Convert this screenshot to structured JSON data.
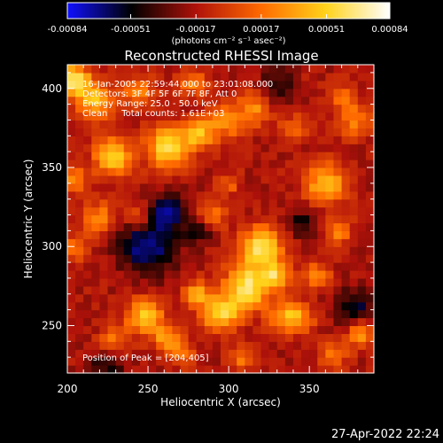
{
  "chart_data": {
    "type": "heatmap",
    "title": "Reconstructed RHESSI Image",
    "xlabel": "Heliocentric X (arcsec)",
    "ylabel": "Heliocentric Y (arcsec)",
    "xlim": [
      200,
      390
    ],
    "ylim": [
      220,
      415
    ],
    "xticks": [
      200,
      250,
      300,
      350
    ],
    "yticks": [
      250,
      300,
      350,
      400
    ],
    "colorbar": {
      "min": -0.00084,
      "max": 0.00084,
      "tick_values": [
        -0.00084,
        -0.00051,
        -0.00017,
        0.00017,
        0.00051,
        0.00084
      ],
      "tick_labels": [
        "-0.00084",
        "-0.00051",
        "-0.00017",
        "0.00017",
        "0.00051",
        "0.00084"
      ],
      "label": "(photons cm⁻² s⁻¹ asec⁻²)",
      "colors": [
        "#1010ff",
        "#000000",
        "#b0120a",
        "#ff6a00",
        "#ffd21a",
        "#ffffff"
      ]
    },
    "annotations": [
      "16-Jan-2005 22:59:44.000 to 23:01:08.000",
      "Detectors: 3F 4F 5F 6F 7F 8F, Att 0",
      "Energy Range: 25.0 - 50.0 keV",
      "Clean     Total counts: 1.61E+03"
    ],
    "peak_label": "Position of Peak = [204,405]",
    "peak": [
      204,
      405
    ],
    "background_value": -0.00017,
    "sources": [
      {
        "x": 204,
        "y": 405,
        "sigma": 7,
        "amp": 0.00084
      },
      {
        "x": 218,
        "y": 392,
        "sigma": 8,
        "amp": 0.0006
      },
      {
        "x": 245,
        "y": 398,
        "sigma": 7,
        "amp": 0.00045
      },
      {
        "x": 278,
        "y": 404,
        "sigma": 6,
        "amp": 0.0004
      },
      {
        "x": 312,
        "y": 394,
        "sigma": 6,
        "amp": 0.00025
      },
      {
        "x": 262,
        "y": 363,
        "sigma": 9,
        "amp": 0.00075
      },
      {
        "x": 282,
        "y": 372,
        "sigma": 7,
        "amp": 0.0006
      },
      {
        "x": 300,
        "y": 380,
        "sigma": 7,
        "amp": 0.0005
      },
      {
        "x": 318,
        "y": 385,
        "sigma": 6,
        "amp": 0.00035
      },
      {
        "x": 228,
        "y": 357,
        "sigma": 8,
        "amp": 0.0007
      },
      {
        "x": 205,
        "y": 342,
        "sigma": 6,
        "amp": 0.0004
      },
      {
        "x": 220,
        "y": 318,
        "sigma": 7,
        "amp": 0.00045
      },
      {
        "x": 205,
        "y": 300,
        "sigma": 6,
        "amp": 0.00035
      },
      {
        "x": 245,
        "y": 320,
        "sigma": 6,
        "amp": 0.0003
      },
      {
        "x": 320,
        "y": 300,
        "sigma": 9,
        "amp": 0.00078
      },
      {
        "x": 312,
        "y": 275,
        "sigma": 10,
        "amp": 0.0008
      },
      {
        "x": 295,
        "y": 258,
        "sigma": 8,
        "amp": 0.0007
      },
      {
        "x": 280,
        "y": 270,
        "sigma": 6,
        "amp": 0.0005
      },
      {
        "x": 330,
        "y": 282,
        "sigma": 6,
        "amp": 0.00055
      },
      {
        "x": 335,
        "y": 255,
        "sigma": 7,
        "amp": 0.0005
      },
      {
        "x": 248,
        "y": 256,
        "sigma": 8,
        "amp": 0.00065
      },
      {
        "x": 262,
        "y": 242,
        "sigma": 6,
        "amp": 0.0005
      },
      {
        "x": 228,
        "y": 240,
        "sigma": 6,
        "amp": 0.0004
      },
      {
        "x": 355,
        "y": 282,
        "sigma": 6,
        "amp": 0.0004
      },
      {
        "x": 360,
        "y": 340,
        "sigma": 9,
        "amp": 0.0006
      },
      {
        "x": 368,
        "y": 310,
        "sigma": 6,
        "amp": 0.0004
      },
      {
        "x": 345,
        "y": 255,
        "sigma": 6,
        "amp": 0.00035
      },
      {
        "x": 382,
        "y": 245,
        "sigma": 6,
        "amp": 0.0005
      },
      {
        "x": 365,
        "y": 232,
        "sigma": 6,
        "amp": 0.0004
      },
      {
        "x": 378,
        "y": 380,
        "sigma": 7,
        "amp": 0.0004
      },
      {
        "x": 340,
        "y": 375,
        "sigma": 6,
        "amp": 0.0003
      },
      {
        "x": 370,
        "y": 395,
        "sigma": 6,
        "amp": 0.00035
      },
      {
        "x": 290,
        "y": 320,
        "sigma": 6,
        "amp": 0.0004
      },
      {
        "x": 300,
        "y": 340,
        "sigma": 5,
        "amp": 0.0003
      },
      {
        "x": 272,
        "y": 232,
        "sigma": 5,
        "amp": 0.0004
      },
      {
        "x": 308,
        "y": 230,
        "sigma": 6,
        "amp": 0.00035
      },
      {
        "x": 250,
        "y": 300,
        "sigma": 12,
        "amp": -0.00055
      },
      {
        "x": 262,
        "y": 322,
        "sigma": 8,
        "amp": -0.0005
      },
      {
        "x": 282,
        "y": 310,
        "sigma": 6,
        "amp": -0.0003
      },
      {
        "x": 378,
        "y": 262,
        "sigma": 8,
        "amp": -0.0004
      },
      {
        "x": 330,
        "y": 402,
        "sigma": 7,
        "amp": -0.0003
      },
      {
        "x": 225,
        "y": 225,
        "sigma": 8,
        "amp": -0.0003
      },
      {
        "x": 345,
        "y": 315,
        "sigma": 7,
        "amp": -0.0003
      }
    ]
  },
  "footer": {
    "timestamp": "27-Apr-2022 22:24"
  }
}
